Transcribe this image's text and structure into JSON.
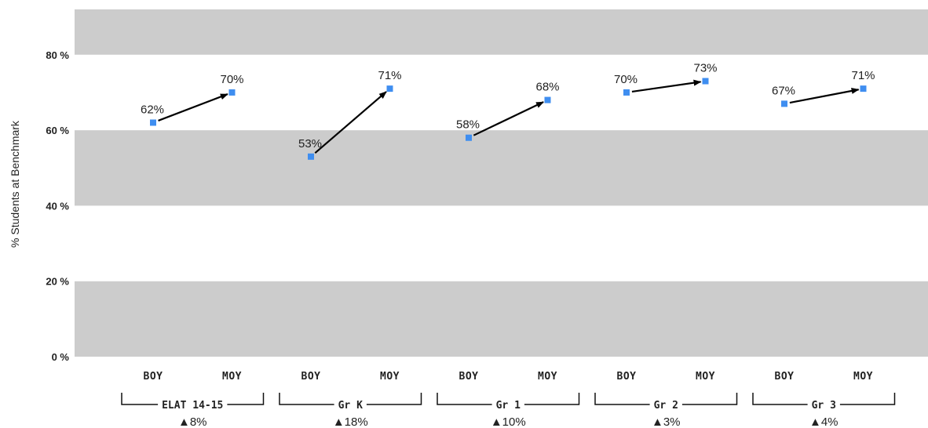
{
  "chart_data": {
    "type": "scatter",
    "ylabel": "% Students at Benchmark",
    "ylim": [
      0,
      92
    ],
    "y_ticks": [
      "0 %",
      "20 %",
      "40 %",
      "60 %",
      "80 %"
    ],
    "y_tick_values": [
      0,
      20,
      40,
      60,
      80
    ],
    "background_bands": "alternating gray/white every 20%",
    "point_color": "#3f8ef0",
    "arrow_color": "#000000",
    "groups": [
      {
        "name": "ELAT 14-15",
        "change": "▲8%",
        "points": [
          {
            "label": "BOY",
            "value": 62,
            "value_label": "62%"
          },
          {
            "label": "MOY",
            "value": 70,
            "value_label": "70%"
          }
        ]
      },
      {
        "name": "Gr K",
        "change": "▲18%",
        "points": [
          {
            "label": "BOY",
            "value": 53,
            "value_label": "53%"
          },
          {
            "label": "MOY",
            "value": 71,
            "value_label": "71%"
          }
        ]
      },
      {
        "name": "Gr 1",
        "change": "▲10%",
        "points": [
          {
            "label": "BOY",
            "value": 58,
            "value_label": "58%"
          },
          {
            "label": "MOY",
            "value": 68,
            "value_label": "68%"
          }
        ]
      },
      {
        "name": "Gr 2",
        "change": "▲3%",
        "points": [
          {
            "label": "BOY",
            "value": 70,
            "value_label": "70%"
          },
          {
            "label": "MOY",
            "value": 73,
            "value_label": "73%"
          }
        ]
      },
      {
        "name": "Gr 3",
        "change": "▲4%",
        "points": [
          {
            "label": "BOY",
            "value": 67,
            "value_label": "67%"
          },
          {
            "label": "MOY",
            "value": 71,
            "value_label": "71%"
          }
        ]
      }
    ]
  }
}
